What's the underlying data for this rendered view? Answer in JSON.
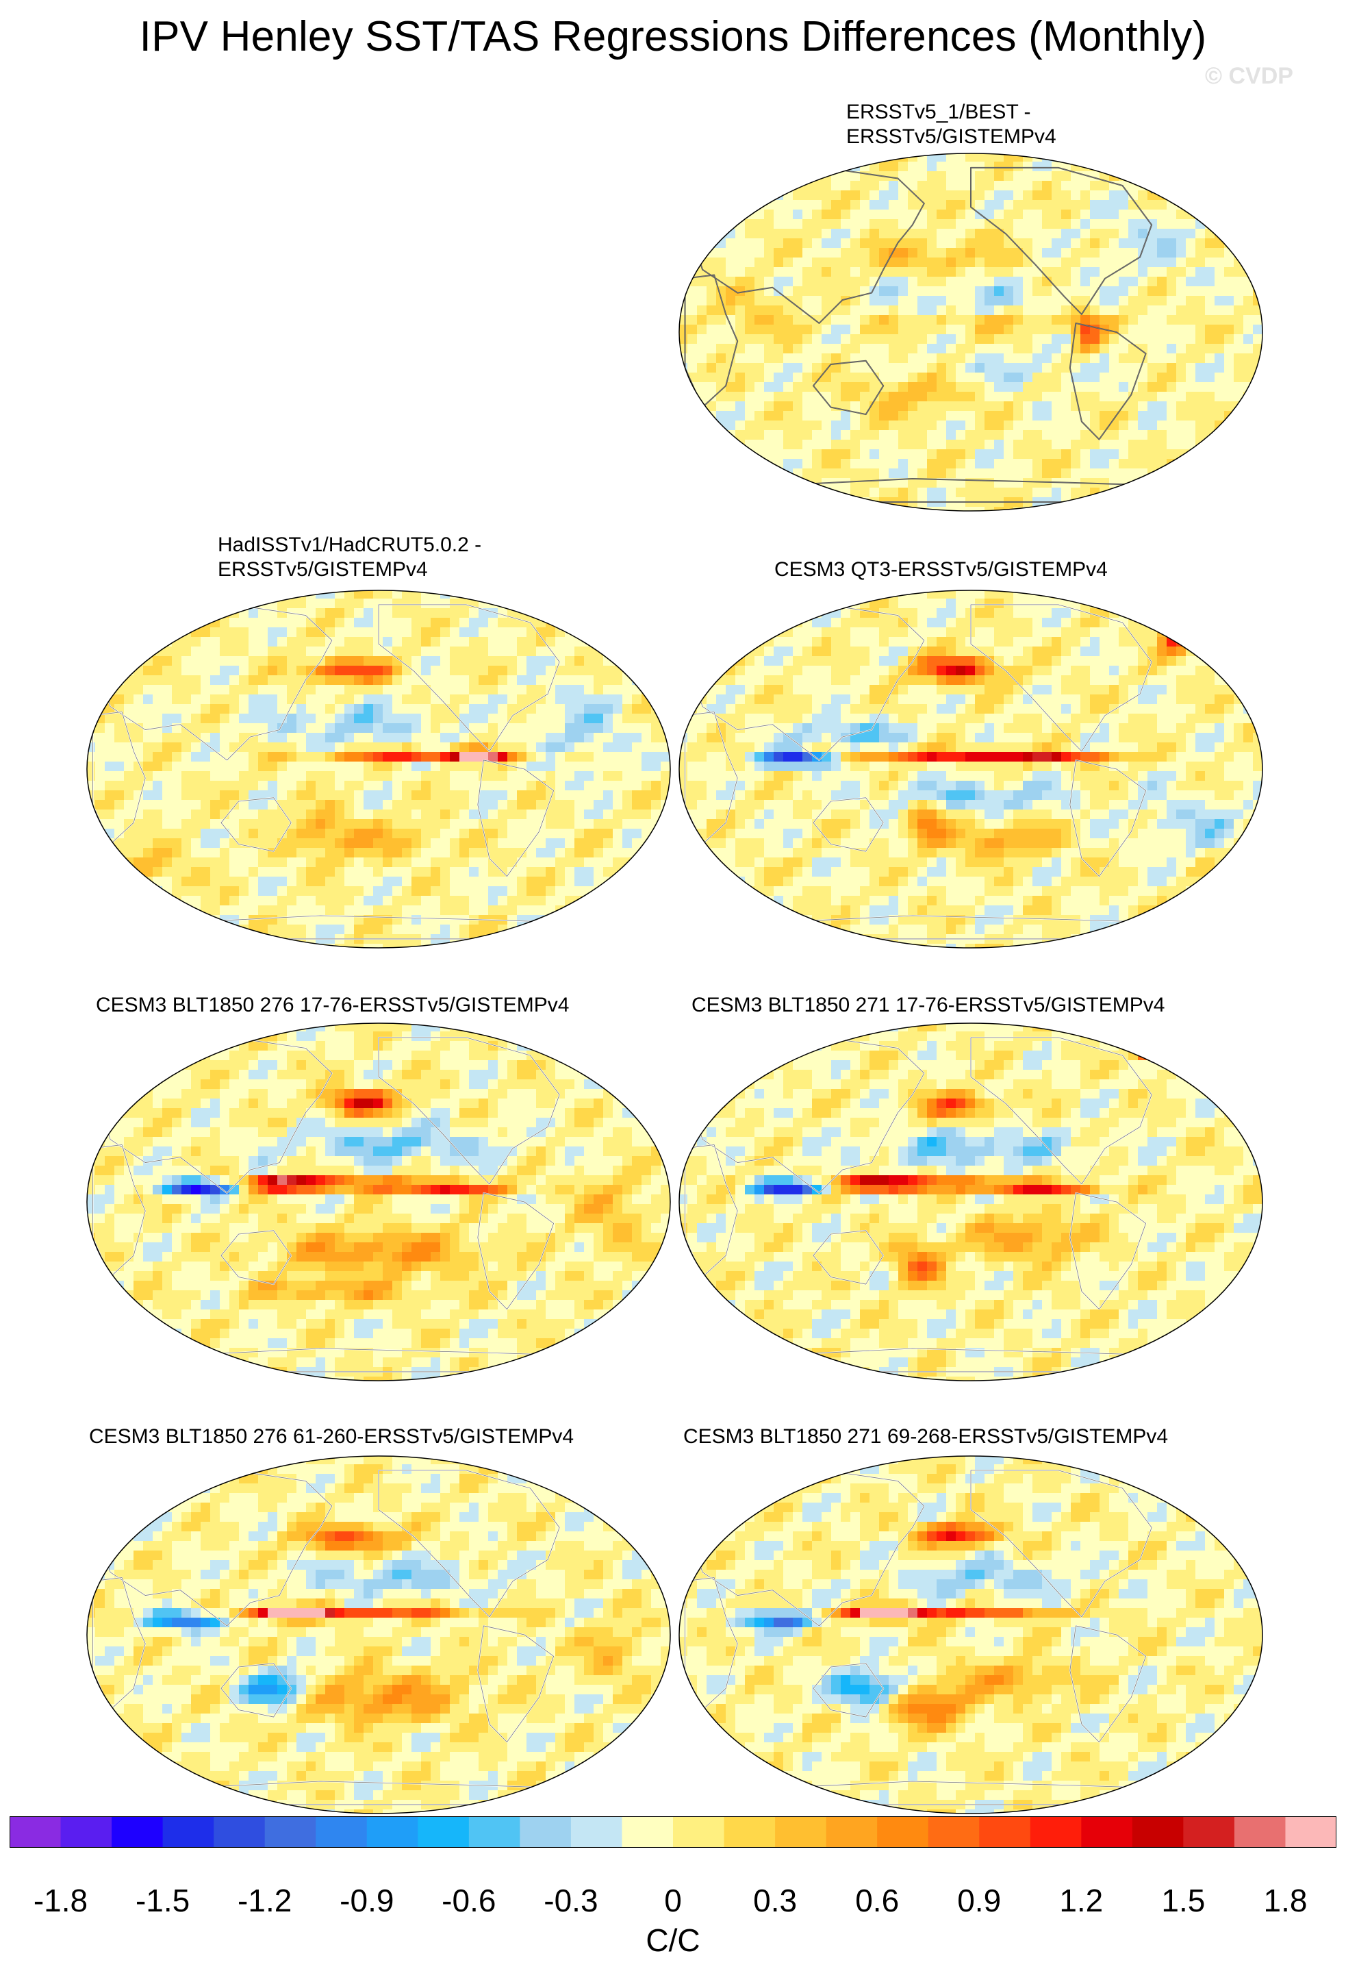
{
  "title": "IPV Henley SST/TAS Regressions Differences (Monthly)",
  "watermark": "© CVDP",
  "panels": [
    {
      "id": "ersst-best",
      "title": "ERSSTv5_1/BEST -\nERSSTv5/GISTEMPv4"
    },
    {
      "id": "hadisst-hadcrut",
      "title": "HadISSTv1/HadCRUT5.0.2 -\nERSSTv5/GISTEMPv4"
    },
    {
      "id": "cesm3-qt3",
      "title": "CESM3 QT3-ERSSTv5/GISTEMPv4"
    },
    {
      "id": "blt1850-276-17-76",
      "title": "CESM3 BLT1850 276 17-76-ERSSTv5/GISTEMPv4"
    },
    {
      "id": "blt1850-271-17-76",
      "title": "CESM3 BLT1850 271 17-76-ERSSTv5/GISTEMPv4"
    },
    {
      "id": "blt1850-276-61-260",
      "title": "CESM3 BLT1850 276 61-260-ERSSTv5/GISTEMPv4"
    },
    {
      "id": "blt1850-271-69-268",
      "title": "CESM3 BLT1850 271 69-268-ERSSTv5/GISTEMPv4"
    }
  ],
  "chart_data": {
    "type": "heatmap",
    "projection": "Robinson (Pacific-centered)",
    "variable": "IPV Henley SST/TAS regression difference",
    "colorbar": {
      "unit": "C/C",
      "levels": [
        -2.0,
        -1.9,
        -1.8,
        -1.7,
        -1.6,
        -1.5,
        -1.4,
        -1.3,
        -1.2,
        -1.1,
        -1.0,
        -0.9,
        -0.8,
        -0.7,
        -0.6,
        -0.5,
        -0.4,
        -0.3,
        -0.2,
        -0.1,
        0,
        0.1,
        0.2,
        0.3,
        0.4,
        0.5,
        0.6,
        0.7,
        0.8,
        0.9,
        1.0,
        1.1,
        1.2,
        1.3,
        1.4,
        1.5,
        1.6,
        1.7,
        1.8,
        1.9,
        2.0
      ],
      "tick_labels": [
        "-1.8",
        "-1.5",
        "-1.2",
        "-0.9",
        "-0.6",
        "-0.3",
        "0",
        "0.3",
        "0.6",
        "0.9",
        "1.2",
        "1.5",
        "1.8"
      ],
      "tick_values": [
        -1.8,
        -1.5,
        -1.2,
        -0.9,
        -0.6,
        -0.3,
        0,
        0.3,
        0.6,
        0.9,
        1.2,
        1.5,
        1.8
      ],
      "colors": [
        "#8a2be2",
        "#5a1ef0",
        "#1e00ff",
        "#1e2eea",
        "#2f4ee0",
        "#3f6ee0",
        "#2f86f0",
        "#1f9ef8",
        "#16b6fa",
        "#50c4f4",
        "#9ed2f0",
        "#c4e6f4",
        "#ffffc0",
        "#fff080",
        "#ffd84a",
        "#ffbf30",
        "#ffa520",
        "#ff8a10",
        "#ff6c14",
        "#ff4a10",
        "#ff1e0a",
        "#e60008",
        "#c80000",
        "#d42020",
        "#e87070",
        "#fcb8b8"
      ],
      "palette_range": [
        -2.0,
        2.0
      ]
    }
  }
}
